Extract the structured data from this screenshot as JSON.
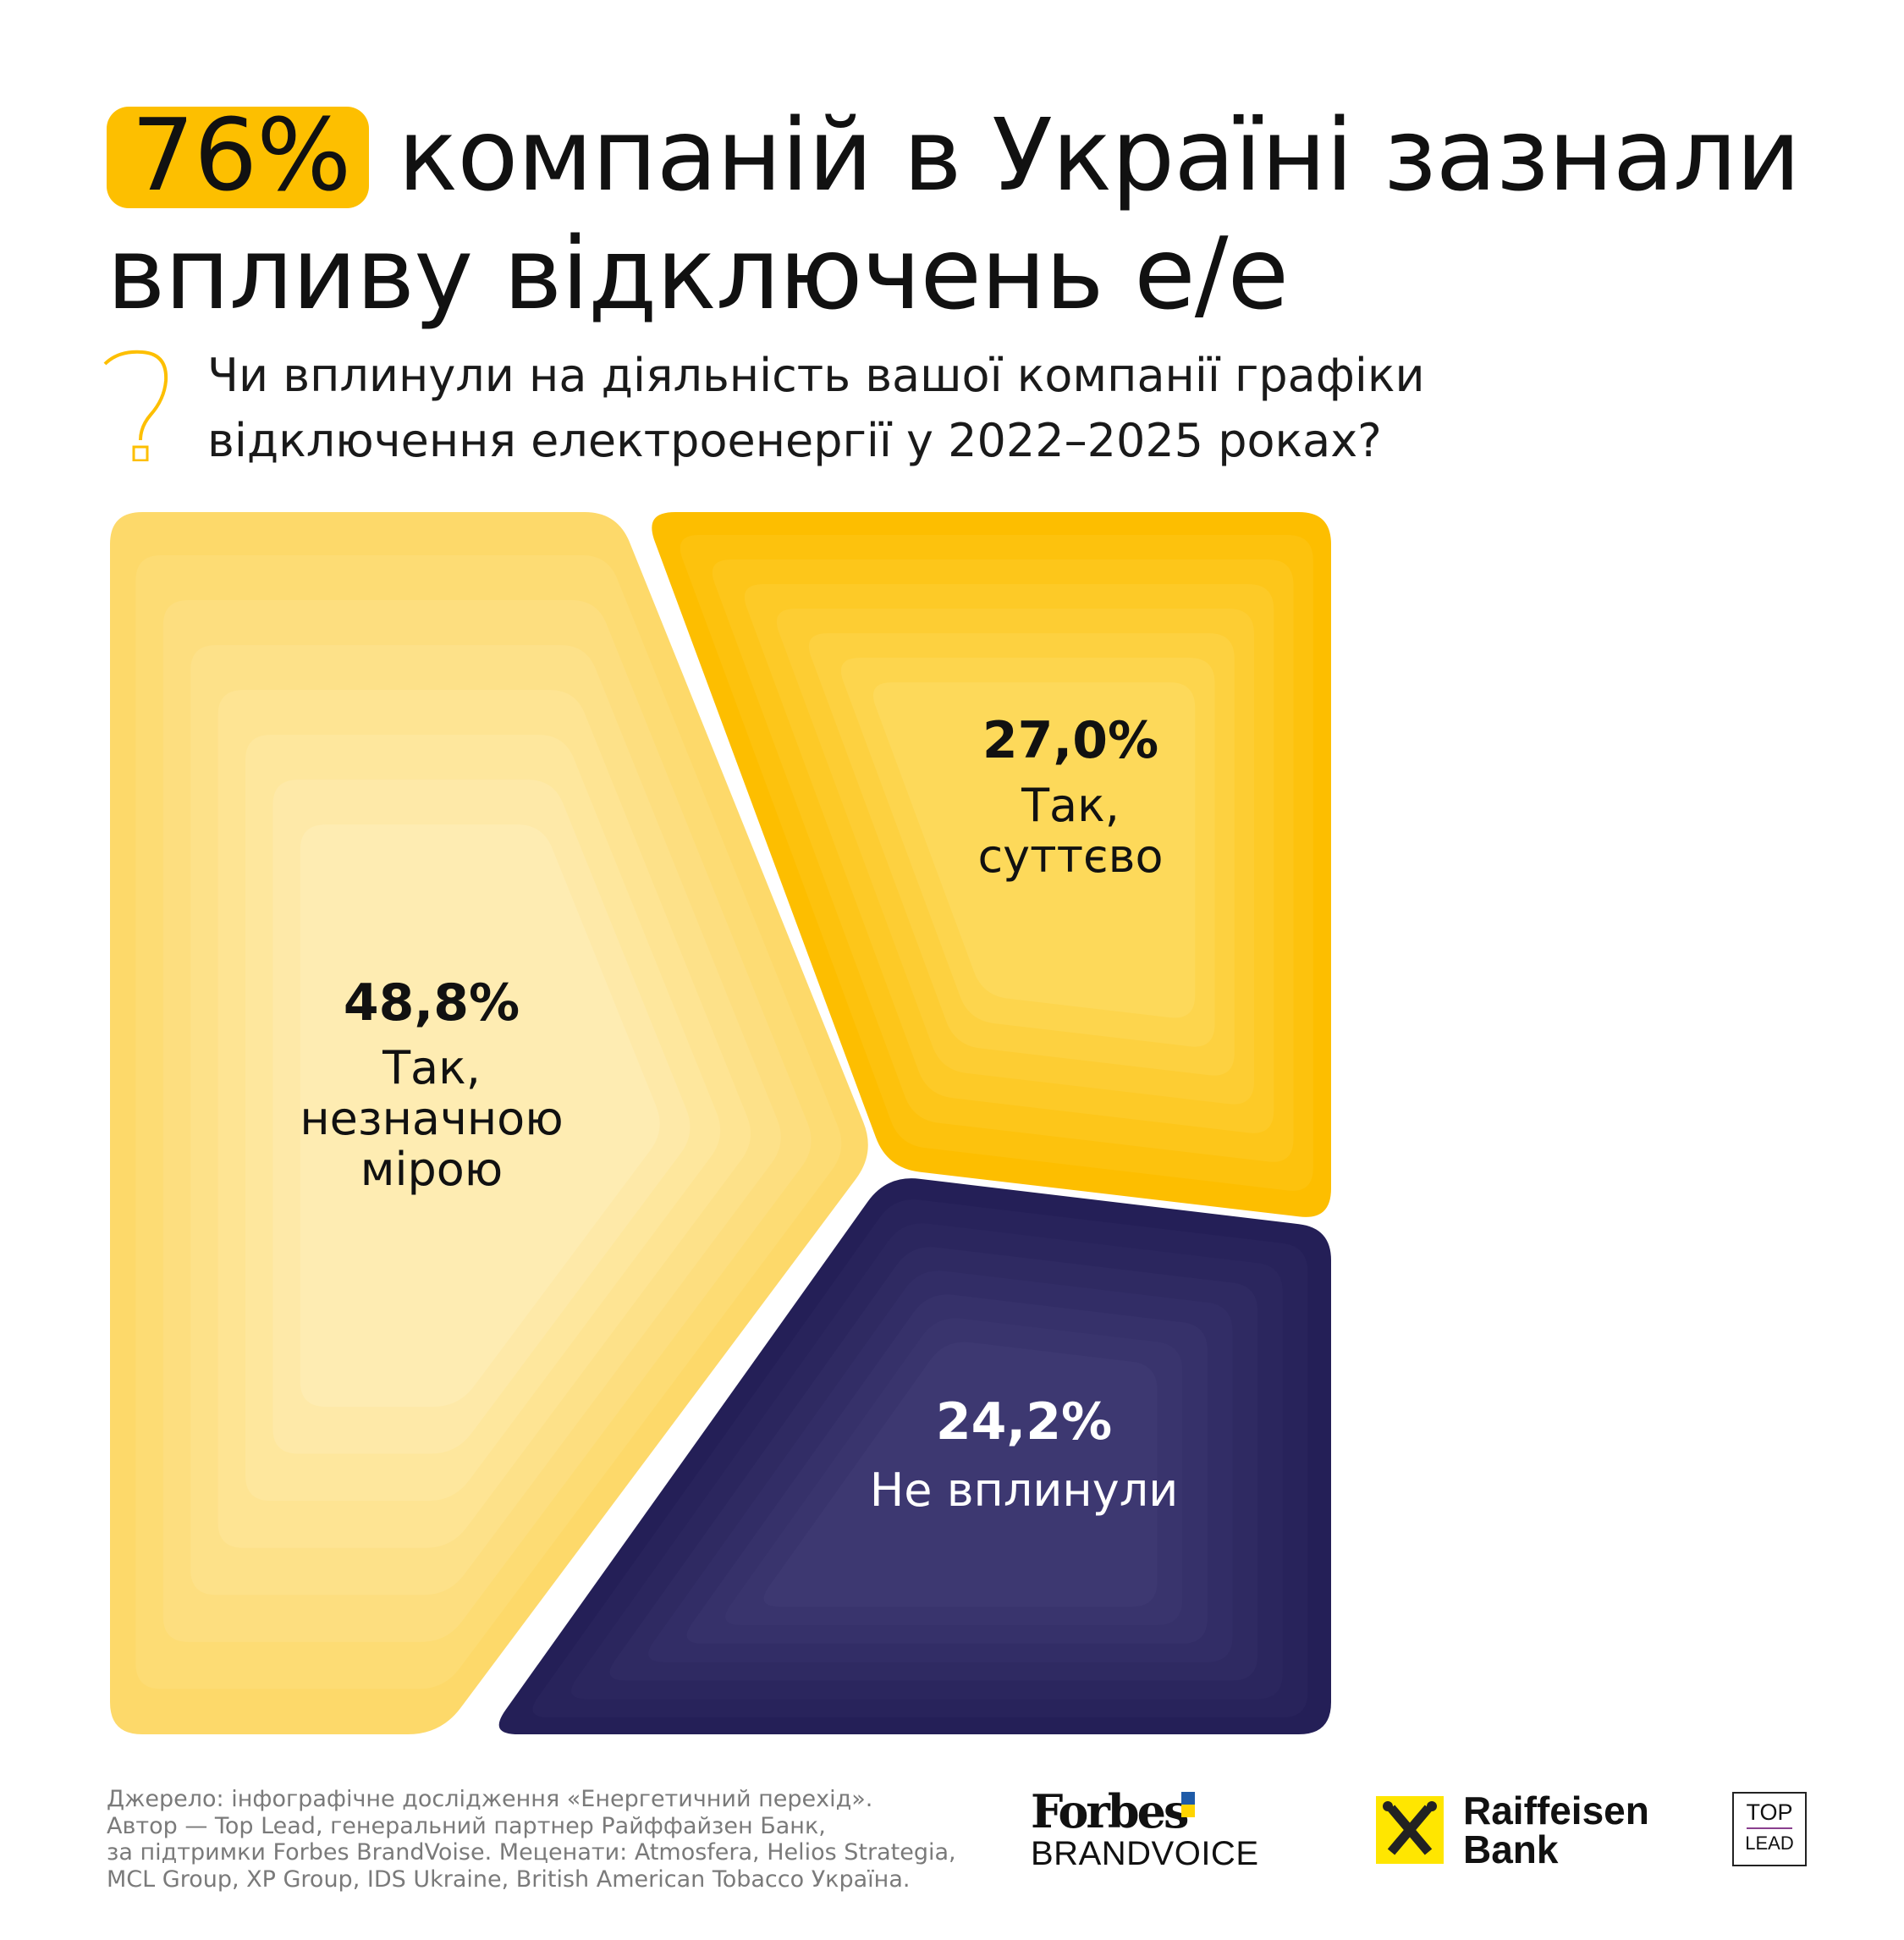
{
  "header": {
    "highlight": "76%",
    "title_line1_rest": "компаній в Україні зазнали",
    "title_line2": "впливу відключень е/е",
    "question_icon": "question-mark-icon",
    "question_line1": "Чи вплинули на діяльність вашої компанії графіки",
    "question_line2": "відключення електроенергії у 2022–2025 роках?"
  },
  "chart_data": {
    "type": "pie",
    "title": "Чи вплинули на діяльність вашої компанії графіки відключення електроенергії у 2022–2025 роках?",
    "unit": "%",
    "slices": [
      {
        "name": "Так, незначною мірою",
        "value": 48.8,
        "pct_label": "48,8%",
        "label_lines": [
          "Так,",
          "незначною",
          "мірою"
        ],
        "color_outer": "#FDD96A",
        "color_inner": "#FEECB2"
      },
      {
        "name": "Так, суттєво",
        "value": 27.0,
        "pct_label": "27,0%",
        "label_lines": [
          "Так,",
          "суттєво"
        ],
        "color_outer": "#FDBE00",
        "color_inner": "#FDD95A"
      },
      {
        "name": "Не вплинули",
        "value": 24.2,
        "pct_label": "24,2%",
        "label_lines": [
          "Не вплинули"
        ],
        "color_outer": "#241F57",
        "color_inner": "#3D3871"
      }
    ]
  },
  "footer": {
    "lines": [
      "Джерело: інфографічне дослідження «Енергетичний перехід».",
      "Автор — Top Lead, генеральний партнер Райффайзен Банк,",
      "за підтримки Forbes BrandVoise. Меценати: Atmosfera, Helios Strategia,",
      "MCL Group, XP Group, IDS Ukraine, British American Tobacco Україна."
    ],
    "logos": {
      "forbes": "Forbes",
      "brandvoice": "BRANDVOICE",
      "raiffeisen_1": "Raiffeisen",
      "raiffeisen_2": "Bank",
      "toplead_1": "TOP",
      "toplead_2": "LEAD"
    }
  }
}
